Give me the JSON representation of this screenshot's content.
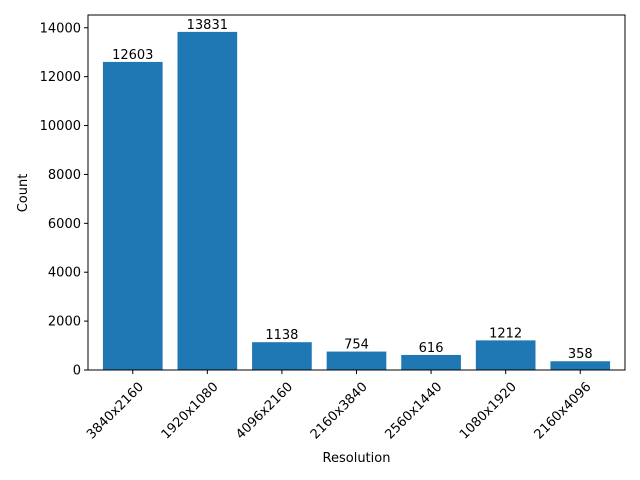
{
  "chart_data": {
    "type": "bar",
    "categories": [
      "3840x2160",
      "1920x1080",
      "4096x2160",
      "2160x3840",
      "2560x1440",
      "1080x1920",
      "2160x4096"
    ],
    "values": [
      12603,
      13831,
      1138,
      754,
      616,
      1212,
      358
    ],
    "data_labels": [
      "12603",
      "13831",
      "1138",
      "754",
      "616",
      "1212",
      "358"
    ],
    "title": "",
    "xlabel": "Resolution",
    "ylabel": "Count",
    "ylim": [
      0,
      14522
    ],
    "yticks": [
      0,
      2000,
      4000,
      6000,
      8000,
      10000,
      12000,
      14000
    ],
    "ytick_labels": [
      "0",
      "2000",
      "4000",
      "6000",
      "8000",
      "10000",
      "12000",
      "14000"
    ],
    "xtick_rotation_deg": 45,
    "bar_color": "#1f77b4",
    "grid": false,
    "legend": "none"
  }
}
